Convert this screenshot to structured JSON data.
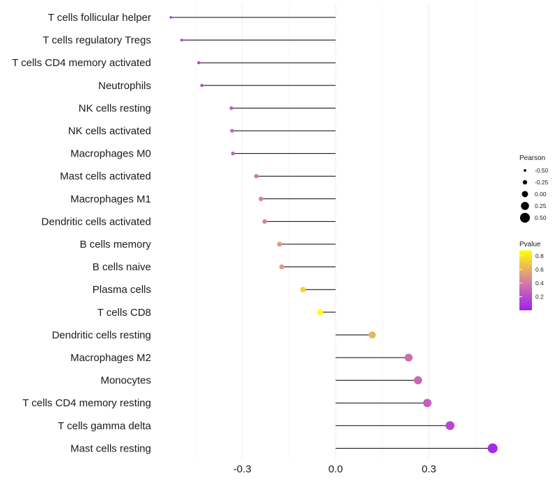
{
  "chart_data": {
    "type": "lollipop",
    "title": "",
    "xlabel": "",
    "ylabel": "",
    "xlim": [
      -0.6,
      0.7
    ],
    "x_ticks": [
      -0.3,
      0.0,
      0.3
    ],
    "x_tick_labels": [
      "-0.3",
      "0.0",
      "0.3"
    ],
    "grid": true,
    "series": [
      {
        "name": "T cells follicular helper",
        "value": -0.53,
        "pvalue": 0.05
      },
      {
        "name": "T cells regulatory  Tregs",
        "value": -0.495,
        "pvalue": 0.1
      },
      {
        "name": "T cells CD4 memory activated",
        "value": -0.44,
        "pvalue": 0.12
      },
      {
        "name": "Neutrophils",
        "value": -0.43,
        "pvalue": 0.15
      },
      {
        "name": "NK cells resting",
        "value": -0.335,
        "pvalue": 0.3
      },
      {
        "name": "NK cells activated",
        "value": -0.333,
        "pvalue": 0.3
      },
      {
        "name": "Macrophages M0",
        "value": -0.33,
        "pvalue": 0.3
      },
      {
        "name": "Mast cells activated",
        "value": -0.255,
        "pvalue": 0.4
      },
      {
        "name": "Macrophages M1",
        "value": -0.24,
        "pvalue": 0.42
      },
      {
        "name": "Dendritic cells activated",
        "value": -0.228,
        "pvalue": 0.42
      },
      {
        "name": "B cells memory",
        "value": -0.18,
        "pvalue": 0.52
      },
      {
        "name": "B cells naive",
        "value": -0.173,
        "pvalue": 0.52
      },
      {
        "name": "Plasma cells",
        "value": -0.105,
        "pvalue": 0.72
      },
      {
        "name": "T cells CD8",
        "value": -0.05,
        "pvalue": 0.88
      },
      {
        "name": "Dendritic cells resting",
        "value": 0.118,
        "pvalue": 0.62
      },
      {
        "name": "Macrophages M2",
        "value": 0.235,
        "pvalue": 0.35
      },
      {
        "name": "Monocytes",
        "value": 0.265,
        "pvalue": 0.32
      },
      {
        "name": "T cells CD4 memory resting",
        "value": 0.295,
        "pvalue": 0.28
      },
      {
        "name": "T cells gamma delta",
        "value": 0.368,
        "pvalue": 0.18
      },
      {
        "name": "Mast cells resting",
        "value": 0.505,
        "pvalue": 0.05
      }
    ],
    "legend": {
      "size": {
        "title": "Pearson",
        "values": [
          -0.5,
          -0.25,
          0.0,
          0.25,
          0.5
        ],
        "labels": [
          "-0.50",
          "-0.25",
          "0.00",
          "0.25",
          "0.50"
        ]
      },
      "color": {
        "title": "Pvalue",
        "range": [
          0.0,
          0.88
        ],
        "ticks": [
          0.2,
          0.4,
          0.6,
          0.8
        ],
        "tick_labels": [
          "0.2",
          "0.4",
          "0.6",
          "0.8"
        ],
        "low_color": "#a020f0",
        "mid_color": "#d8829e",
        "high_color": "#ffff00"
      },
      "placement": "right"
    }
  }
}
